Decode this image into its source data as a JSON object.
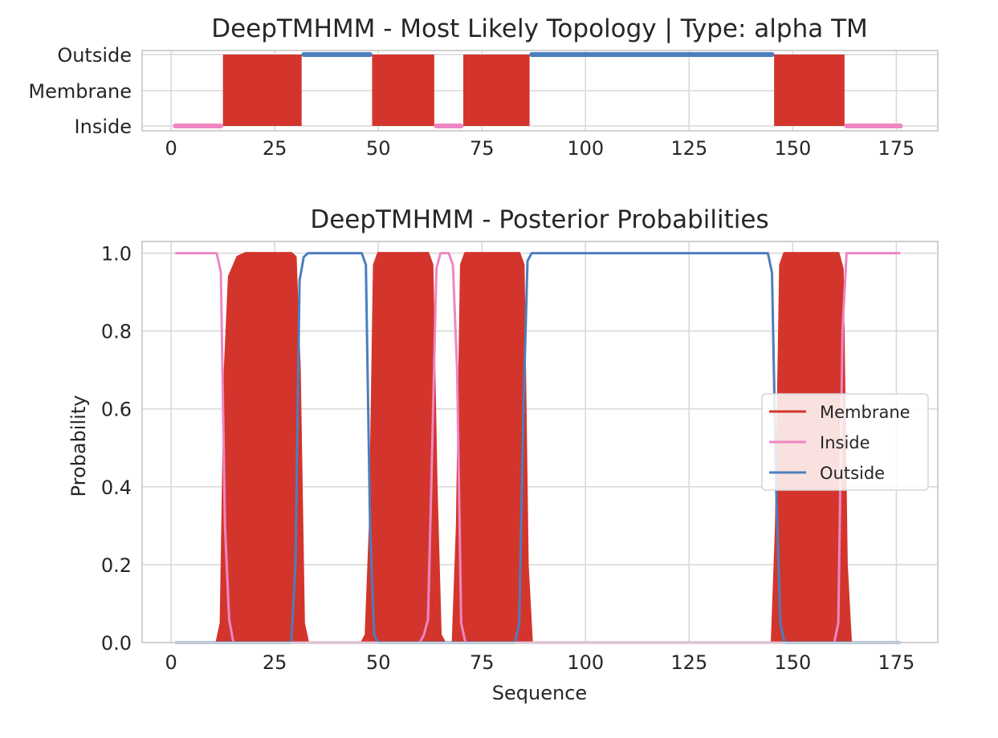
{
  "colors": {
    "membrane": "#d3352c",
    "inside": "#ee86c3",
    "outside": "#4c7ebd"
  },
  "chart_data": [
    {
      "type": "topology",
      "title": "DeepTMHMM - Most Likely Topology | Type: alpha TM",
      "y_categories": [
        "Outside",
        "Membrane",
        "Inside"
      ],
      "x_ticks": [
        0,
        25,
        50,
        75,
        100,
        125,
        150,
        175
      ],
      "xlim": [
        -7,
        185
      ],
      "segments": [
        {
          "state": "Inside",
          "start": 1,
          "end": 12
        },
        {
          "state": "Membrane",
          "start": 13,
          "end": 31
        },
        {
          "state": "Outside",
          "start": 32,
          "end": 48
        },
        {
          "state": "Membrane",
          "start": 49,
          "end": 63
        },
        {
          "state": "Inside",
          "start": 64,
          "end": 70
        },
        {
          "state": "Membrane",
          "start": 71,
          "end": 86
        },
        {
          "state": "Outside",
          "start": 87,
          "end": 145
        },
        {
          "state": "Membrane",
          "start": 146,
          "end": 162
        },
        {
          "state": "Inside",
          "start": 163,
          "end": 176
        }
      ]
    },
    {
      "type": "line",
      "title": "DeepTMHMM - Posterior Probabilities",
      "xlabel": "Sequence",
      "ylabel": "Probability",
      "x_ticks": [
        0,
        25,
        50,
        75,
        100,
        125,
        150,
        175
      ],
      "y_ticks": [
        "0.0",
        "0.2",
        "0.4",
        "0.6",
        "0.8",
        "1.0"
      ],
      "xlim": [
        -7,
        185
      ],
      "ylim": [
        0,
        1.03
      ],
      "legend": "center-right",
      "series": [
        {
          "name": "Membrane",
          "color_key": "membrane",
          "fill": true,
          "points": [
            [
              1,
              0
            ],
            [
              11,
              0
            ],
            [
              12,
              0.05
            ],
            [
              13,
              0.7
            ],
            [
              14,
              0.94
            ],
            [
              16,
              0.99
            ],
            [
              18,
              1
            ],
            [
              29,
              1
            ],
            [
              30,
              0.99
            ],
            [
              31,
              0.7
            ],
            [
              32,
              0.05
            ],
            [
              33,
              0
            ],
            [
              46,
              0
            ],
            [
              47,
              0.02
            ],
            [
              48,
              0.3
            ],
            [
              49,
              0.97
            ],
            [
              50,
              1
            ],
            [
              62,
              1
            ],
            [
              63,
              0.97
            ],
            [
              64,
              0.4
            ],
            [
              65,
              0.02
            ],
            [
              66,
              0
            ],
            [
              68,
              0
            ],
            [
              69,
              0.3
            ],
            [
              70,
              0.97
            ],
            [
              71,
              1
            ],
            [
              84,
              1
            ],
            [
              85,
              0.97
            ],
            [
              86,
              0.2
            ],
            [
              87,
              0
            ],
            [
              145,
              0
            ],
            [
              146,
              0.3
            ],
            [
              147,
              0.97
            ],
            [
              148,
              1
            ],
            [
              161,
              1
            ],
            [
              162,
              0.96
            ],
            [
              163,
              0.2
            ],
            [
              164,
              0
            ],
            [
              176,
              0
            ]
          ]
        },
        {
          "name": "Inside",
          "color_key": "inside",
          "fill": false,
          "points": [
            [
              1,
              1
            ],
            [
              11,
              1
            ],
            [
              12,
              0.95
            ],
            [
              13,
              0.3
            ],
            [
              14,
              0.06
            ],
            [
              15,
              0
            ],
            [
              60,
              0
            ],
            [
              61,
              0.02
            ],
            [
              62,
              0.06
            ],
            [
              63,
              0.5
            ],
            [
              64,
              0.96
            ],
            [
              65,
              1
            ],
            [
              67,
              1
            ],
            [
              68,
              0.97
            ],
            [
              69,
              0.7
            ],
            [
              70,
              0.05
            ],
            [
              71,
              0
            ],
            [
              160,
              0
            ],
            [
              161,
              0.05
            ],
            [
              162,
              0.8
            ],
            [
              163,
              1
            ],
            [
              176,
              1
            ]
          ]
        },
        {
          "name": "Outside",
          "color_key": "outside",
          "fill": false,
          "points": [
            [
              1,
              0
            ],
            [
              29,
              0
            ],
            [
              30,
              0.2
            ],
            [
              31,
              0.93
            ],
            [
              32,
              0.99
            ],
            [
              33,
              1
            ],
            [
              46,
              1
            ],
            [
              47,
              0.97
            ],
            [
              48,
              0.3
            ],
            [
              49,
              0.02
            ],
            [
              50,
              0
            ],
            [
              83,
              0
            ],
            [
              84,
              0.05
            ],
            [
              85,
              0.6
            ],
            [
              86,
              0.98
            ],
            [
              87,
              1
            ],
            [
              144,
              1
            ],
            [
              145,
              0.95
            ],
            [
              146,
              0.4
            ],
            [
              147,
              0.05
            ],
            [
              148,
              0
            ],
            [
              176,
              0
            ]
          ]
        }
      ]
    }
  ]
}
